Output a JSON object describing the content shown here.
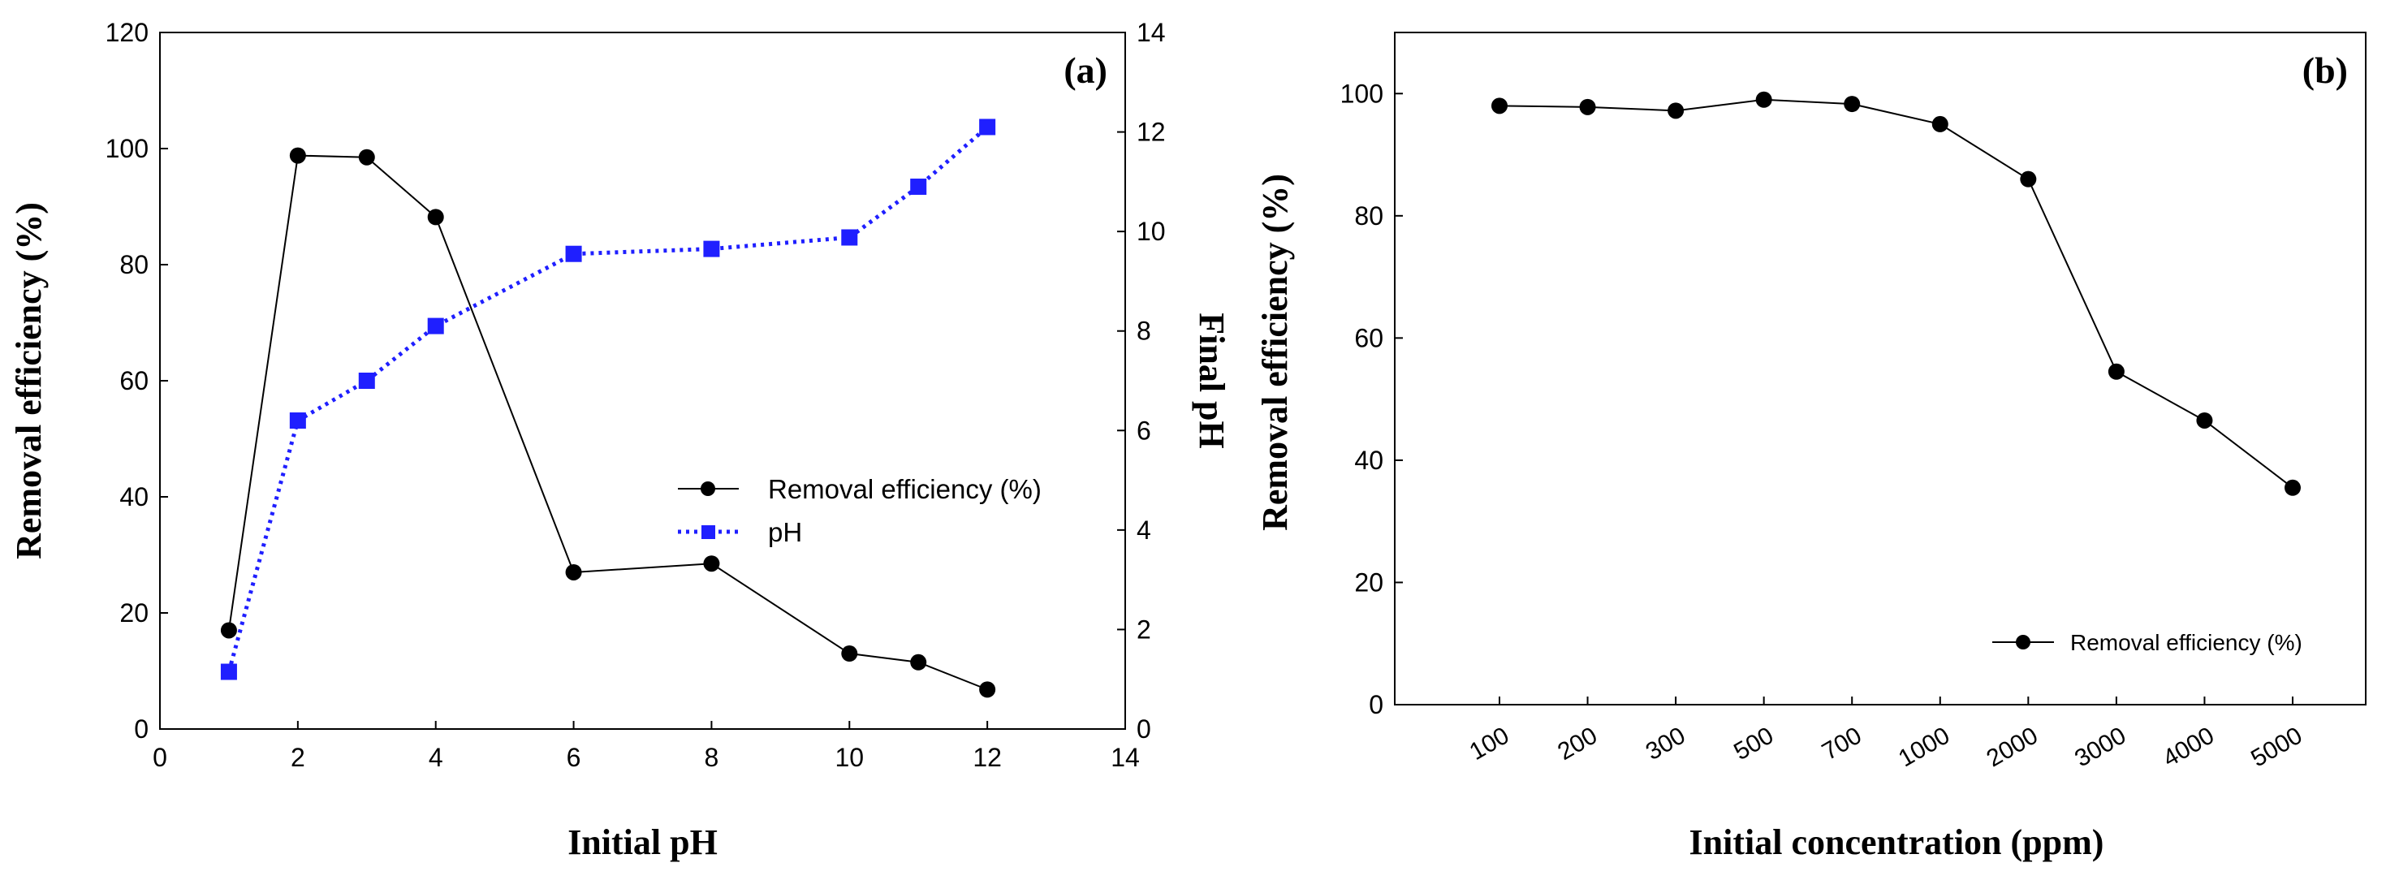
{
  "chart_data": [
    {
      "panel_label": "(a)",
      "type": "line",
      "x": [
        1,
        2,
        3,
        4,
        6,
        8,
        10,
        11,
        12
      ],
      "xlabel": "Initial pH",
      "ylabel": "Removal efficiency (%)",
      "y2label": "Final pH",
      "xlim": [
        0,
        14
      ],
      "ylim": [
        0,
        120
      ],
      "y2lim": [
        0,
        14
      ],
      "xticks": [
        0,
        2,
        4,
        6,
        8,
        10,
        12,
        14
      ],
      "yticks": [
        0,
        20,
        40,
        60,
        80,
        100,
        120
      ],
      "y2ticks": [
        0,
        2,
        4,
        6,
        8,
        10,
        12,
        14
      ],
      "legend_position": "center-right",
      "series": [
        {
          "name": "Removal efficiency (%)",
          "axis": "left",
          "color": "#000000",
          "marker": "circle",
          "line": "solid",
          "values": [
            17,
            98.8,
            98.5,
            88.2,
            27,
            28.5,
            13,
            11.5,
            6.8
          ]
        },
        {
          "name": "pH",
          "axis": "right",
          "color": "#1f1fff",
          "marker": "square",
          "line": "dotted",
          "values": [
            1.15,
            6.2,
            7.0,
            8.1,
            9.55,
            9.65,
            9.88,
            10.9,
            12.1
          ]
        }
      ]
    },
    {
      "panel_label": "(b)",
      "type": "line",
      "categories": [
        "100",
        "200",
        "300",
        "500",
        "700",
        "1000",
        "2000",
        "3000",
        "4000",
        "5000"
      ],
      "xlabel": "Initial concentration (ppm)",
      "ylabel": "Removal efficiency (%)",
      "ylim": [
        0,
        110
      ],
      "yticks": [
        0,
        20,
        40,
        60,
        80,
        100
      ],
      "legend_position": "bottom-right",
      "series": [
        {
          "name": "Removal efficiency (%)",
          "color": "#000000",
          "marker": "circle",
          "line": "solid",
          "values": [
            98,
            97.8,
            97.2,
            99,
            98.3,
            95,
            86,
            54.5,
            46.5,
            35.5
          ]
        }
      ]
    }
  ]
}
